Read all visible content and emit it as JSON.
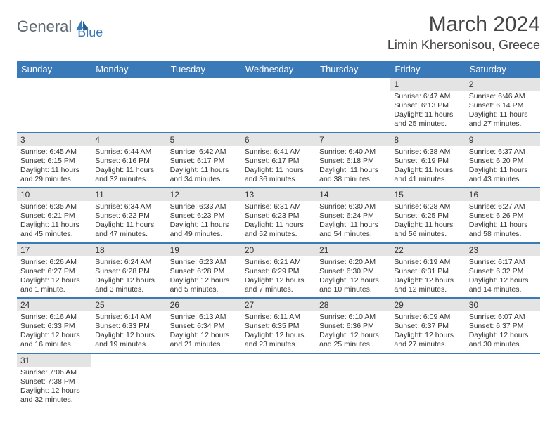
{
  "logo": {
    "part1": "General",
    "part2": "Blue"
  },
  "title": "March 2024",
  "location": "Limin Khersonisou, Greece",
  "colors": {
    "header_bg": "#3b7ab8",
    "header_text": "#ffffff",
    "daynum_bg": "#e4e4e4",
    "border": "#3b7ab8",
    "logo_gray": "#5a6670",
    "logo_blue": "#3b7ab8",
    "text": "#333333",
    "background": "#ffffff"
  },
  "typography": {
    "title_fontsize": 30,
    "location_fontsize": 18,
    "dayheader_fontsize": 13,
    "daynum_fontsize": 12,
    "cell_fontsize": 10.5
  },
  "days_of_week": [
    "Sunday",
    "Monday",
    "Tuesday",
    "Wednesday",
    "Thursday",
    "Friday",
    "Saturday"
  ],
  "weeks": [
    [
      {
        "empty": true
      },
      {
        "empty": true
      },
      {
        "empty": true
      },
      {
        "empty": true
      },
      {
        "empty": true
      },
      {
        "day": "1",
        "sunrise": "Sunrise: 6:47 AM",
        "sunset": "Sunset: 6:13 PM",
        "daylight": "Daylight: 11 hours and 25 minutes."
      },
      {
        "day": "2",
        "sunrise": "Sunrise: 6:46 AM",
        "sunset": "Sunset: 6:14 PM",
        "daylight": "Daylight: 11 hours and 27 minutes."
      }
    ],
    [
      {
        "day": "3",
        "sunrise": "Sunrise: 6:45 AM",
        "sunset": "Sunset: 6:15 PM",
        "daylight": "Daylight: 11 hours and 29 minutes."
      },
      {
        "day": "4",
        "sunrise": "Sunrise: 6:44 AM",
        "sunset": "Sunset: 6:16 PM",
        "daylight": "Daylight: 11 hours and 32 minutes."
      },
      {
        "day": "5",
        "sunrise": "Sunrise: 6:42 AM",
        "sunset": "Sunset: 6:17 PM",
        "daylight": "Daylight: 11 hours and 34 minutes."
      },
      {
        "day": "6",
        "sunrise": "Sunrise: 6:41 AM",
        "sunset": "Sunset: 6:17 PM",
        "daylight": "Daylight: 11 hours and 36 minutes."
      },
      {
        "day": "7",
        "sunrise": "Sunrise: 6:40 AM",
        "sunset": "Sunset: 6:18 PM",
        "daylight": "Daylight: 11 hours and 38 minutes."
      },
      {
        "day": "8",
        "sunrise": "Sunrise: 6:38 AM",
        "sunset": "Sunset: 6:19 PM",
        "daylight": "Daylight: 11 hours and 41 minutes."
      },
      {
        "day": "9",
        "sunrise": "Sunrise: 6:37 AM",
        "sunset": "Sunset: 6:20 PM",
        "daylight": "Daylight: 11 hours and 43 minutes."
      }
    ],
    [
      {
        "day": "10",
        "sunrise": "Sunrise: 6:35 AM",
        "sunset": "Sunset: 6:21 PM",
        "daylight": "Daylight: 11 hours and 45 minutes."
      },
      {
        "day": "11",
        "sunrise": "Sunrise: 6:34 AM",
        "sunset": "Sunset: 6:22 PM",
        "daylight": "Daylight: 11 hours and 47 minutes."
      },
      {
        "day": "12",
        "sunrise": "Sunrise: 6:33 AM",
        "sunset": "Sunset: 6:23 PM",
        "daylight": "Daylight: 11 hours and 49 minutes."
      },
      {
        "day": "13",
        "sunrise": "Sunrise: 6:31 AM",
        "sunset": "Sunset: 6:23 PM",
        "daylight": "Daylight: 11 hours and 52 minutes."
      },
      {
        "day": "14",
        "sunrise": "Sunrise: 6:30 AM",
        "sunset": "Sunset: 6:24 PM",
        "daylight": "Daylight: 11 hours and 54 minutes."
      },
      {
        "day": "15",
        "sunrise": "Sunrise: 6:28 AM",
        "sunset": "Sunset: 6:25 PM",
        "daylight": "Daylight: 11 hours and 56 minutes."
      },
      {
        "day": "16",
        "sunrise": "Sunrise: 6:27 AM",
        "sunset": "Sunset: 6:26 PM",
        "daylight": "Daylight: 11 hours and 58 minutes."
      }
    ],
    [
      {
        "day": "17",
        "sunrise": "Sunrise: 6:26 AM",
        "sunset": "Sunset: 6:27 PM",
        "daylight": "Daylight: 12 hours and 1 minute."
      },
      {
        "day": "18",
        "sunrise": "Sunrise: 6:24 AM",
        "sunset": "Sunset: 6:28 PM",
        "daylight": "Daylight: 12 hours and 3 minutes."
      },
      {
        "day": "19",
        "sunrise": "Sunrise: 6:23 AM",
        "sunset": "Sunset: 6:28 PM",
        "daylight": "Daylight: 12 hours and 5 minutes."
      },
      {
        "day": "20",
        "sunrise": "Sunrise: 6:21 AM",
        "sunset": "Sunset: 6:29 PM",
        "daylight": "Daylight: 12 hours and 7 minutes."
      },
      {
        "day": "21",
        "sunrise": "Sunrise: 6:20 AM",
        "sunset": "Sunset: 6:30 PM",
        "daylight": "Daylight: 12 hours and 10 minutes."
      },
      {
        "day": "22",
        "sunrise": "Sunrise: 6:19 AM",
        "sunset": "Sunset: 6:31 PM",
        "daylight": "Daylight: 12 hours and 12 minutes."
      },
      {
        "day": "23",
        "sunrise": "Sunrise: 6:17 AM",
        "sunset": "Sunset: 6:32 PM",
        "daylight": "Daylight: 12 hours and 14 minutes."
      }
    ],
    [
      {
        "day": "24",
        "sunrise": "Sunrise: 6:16 AM",
        "sunset": "Sunset: 6:33 PM",
        "daylight": "Daylight: 12 hours and 16 minutes."
      },
      {
        "day": "25",
        "sunrise": "Sunrise: 6:14 AM",
        "sunset": "Sunset: 6:33 PM",
        "daylight": "Daylight: 12 hours and 19 minutes."
      },
      {
        "day": "26",
        "sunrise": "Sunrise: 6:13 AM",
        "sunset": "Sunset: 6:34 PM",
        "daylight": "Daylight: 12 hours and 21 minutes."
      },
      {
        "day": "27",
        "sunrise": "Sunrise: 6:11 AM",
        "sunset": "Sunset: 6:35 PM",
        "daylight": "Daylight: 12 hours and 23 minutes."
      },
      {
        "day": "28",
        "sunrise": "Sunrise: 6:10 AM",
        "sunset": "Sunset: 6:36 PM",
        "daylight": "Daylight: 12 hours and 25 minutes."
      },
      {
        "day": "29",
        "sunrise": "Sunrise: 6:09 AM",
        "sunset": "Sunset: 6:37 PM",
        "daylight": "Daylight: 12 hours and 27 minutes."
      },
      {
        "day": "30",
        "sunrise": "Sunrise: 6:07 AM",
        "sunset": "Sunset: 6:37 PM",
        "daylight": "Daylight: 12 hours and 30 minutes."
      }
    ],
    [
      {
        "day": "31",
        "sunrise": "Sunrise: 7:06 AM",
        "sunset": "Sunset: 7:38 PM",
        "daylight": "Daylight: 12 hours and 32 minutes."
      },
      {
        "empty": true
      },
      {
        "empty": true
      },
      {
        "empty": true
      },
      {
        "empty": true
      },
      {
        "empty": true
      },
      {
        "empty": true
      }
    ]
  ]
}
